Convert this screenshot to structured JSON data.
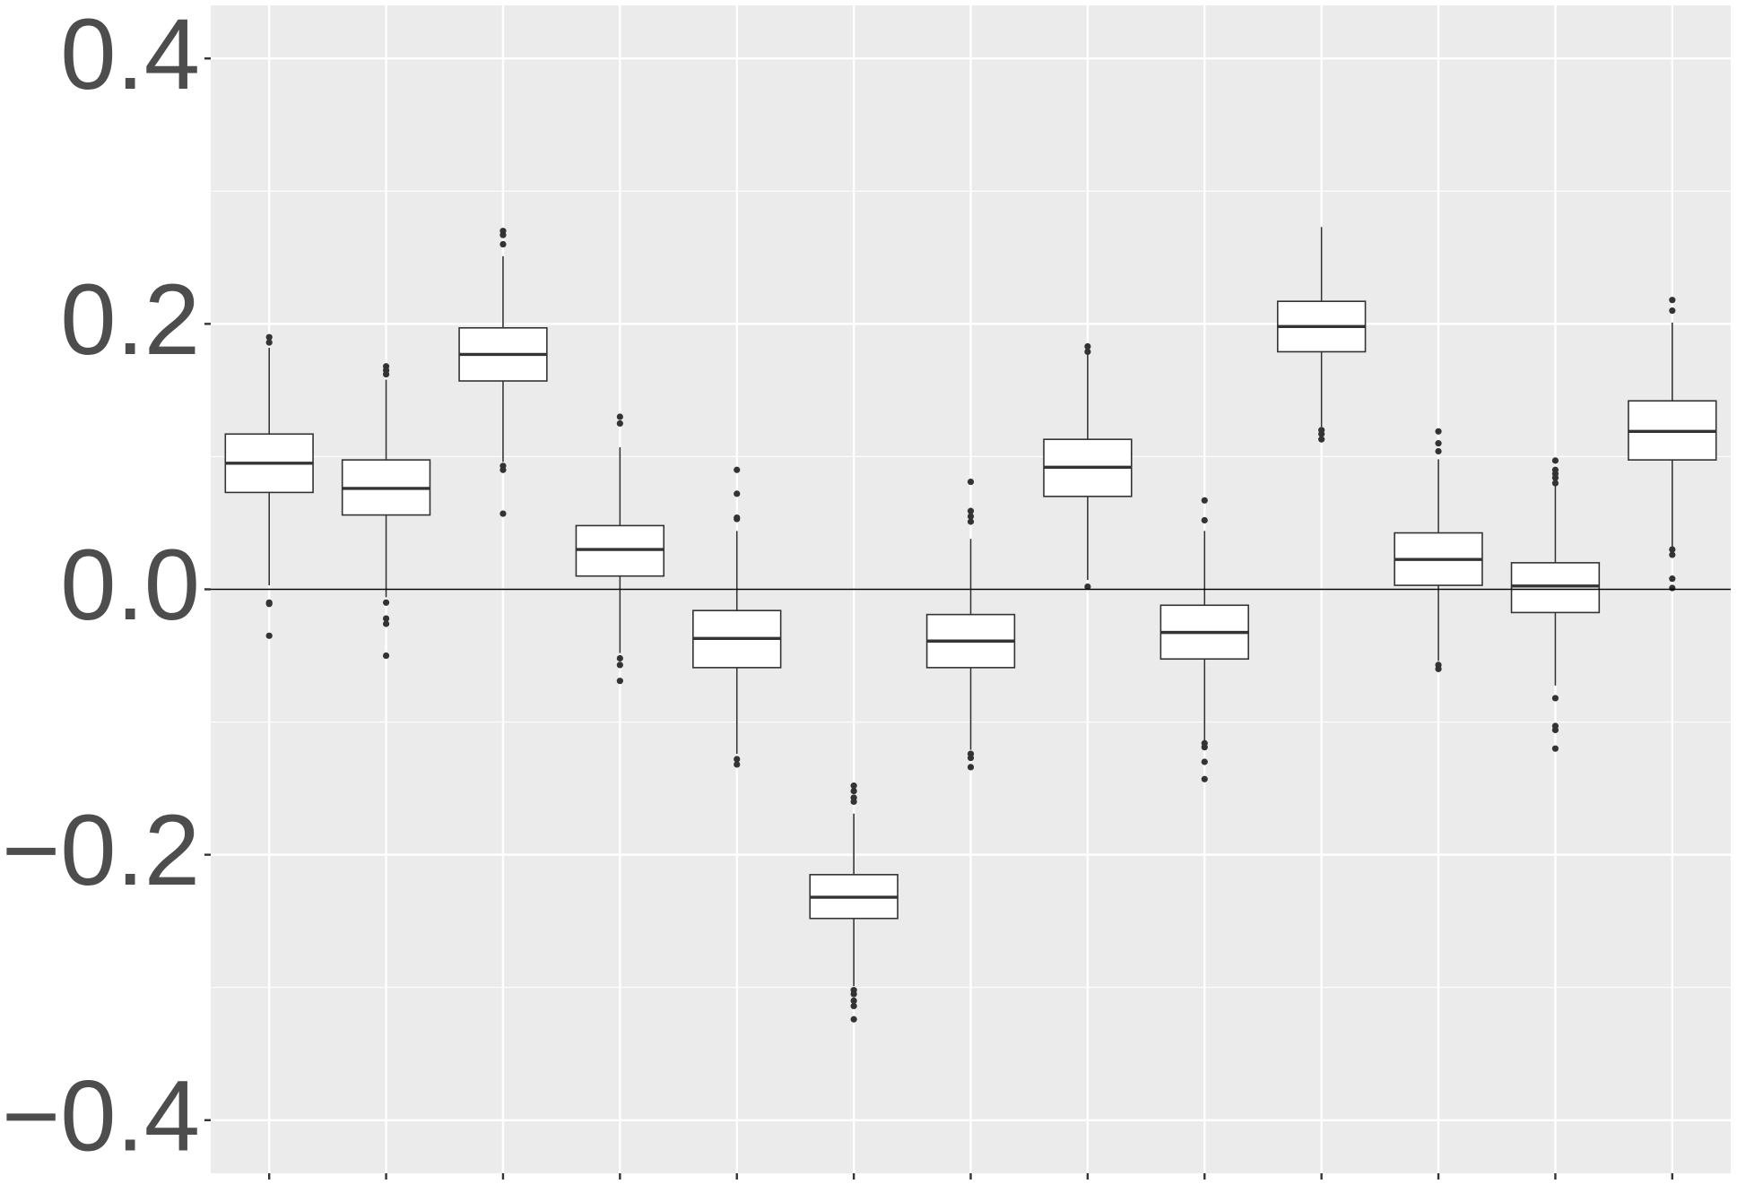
{
  "chart_data": {
    "type": "box",
    "categories": [
      null,
      null,
      null,
      null,
      null,
      null,
      null,
      null,
      null,
      null,
      null,
      null,
      null
    ],
    "boxes": [
      {
        "low": 0.003,
        "q1": 0.073,
        "median": 0.095,
        "q3": 0.117,
        "high": 0.182,
        "outliers": [
          0.19,
          0.186,
          -0.01,
          -0.011,
          -0.035
        ]
      },
      {
        "low": -0.006,
        "q1": 0.056,
        "median": 0.076,
        "q3": 0.0975,
        "high": 0.158,
        "outliers": [
          0.168,
          0.165,
          0.162,
          -0.01,
          -0.022,
          -0.026,
          -0.05
        ]
      },
      {
        "low": 0.096,
        "q1": 0.157,
        "median": 0.177,
        "q3": 0.197,
        "high": 0.251,
        "outliers": [
          0.27,
          0.267,
          0.26,
          0.093,
          0.09,
          0.057
        ]
      },
      {
        "low": -0.048,
        "q1": 0.01,
        "median": 0.03,
        "q3": 0.048,
        "high": 0.107,
        "outliers": [
          0.13,
          0.125,
          -0.052,
          -0.057,
          -0.069
        ]
      },
      {
        "low": -0.124,
        "q1": -0.059,
        "median": -0.037,
        "q3": -0.016,
        "high": 0.044,
        "outliers": [
          0.09,
          0.072,
          0.054,
          0.053,
          -0.128,
          -0.132
        ]
      },
      {
        "low": -0.299,
        "q1": -0.248,
        "median": -0.232,
        "q3": -0.215,
        "high": -0.169,
        "outliers": [
          -0.148,
          -0.152,
          -0.157,
          -0.16,
          -0.302,
          -0.305,
          -0.31,
          -0.314,
          -0.324
        ]
      },
      {
        "low": -0.121,
        "q1": -0.059,
        "median": -0.039,
        "q3": -0.019,
        "high": 0.038,
        "outliers": [
          0.081,
          0.059,
          0.055,
          0.051,
          -0.124,
          -0.127,
          -0.134
        ]
      },
      {
        "low": 0.007,
        "q1": 0.07,
        "median": 0.092,
        "q3": 0.113,
        "high": 0.178,
        "outliers": [
          0.183,
          0.179,
          0.002
        ]
      },
      {
        "low": -0.114,
        "q1": -0.0525,
        "median": -0.0325,
        "q3": -0.012,
        "high": 0.044,
        "outliers": [
          0.067,
          0.052,
          -0.116,
          -0.119,
          -0.13,
          -0.143
        ]
      },
      {
        "low": 0.1225,
        "q1": 0.179,
        "median": 0.198,
        "q3": 0.217,
        "high": 0.273,
        "outliers": [
          0.12,
          0.117,
          0.113
        ]
      },
      {
        "low": -0.054,
        "q1": 0.003,
        "median": 0.0225,
        "q3": 0.0425,
        "high": 0.098,
        "outliers": [
          0.119,
          0.11,
          0.104,
          -0.057,
          -0.06
        ]
      },
      {
        "low": -0.0725,
        "q1": -0.0175,
        "median": 0.0025,
        "q3": 0.02,
        "high": 0.078,
        "outliers": [
          0.097,
          0.09,
          0.087,
          0.084,
          0.08,
          -0.082,
          -0.103,
          -0.106,
          -0.12
        ]
      },
      {
        "low": 0.0275,
        "q1": 0.0975,
        "median": 0.119,
        "q3": 0.142,
        "high": 0.201,
        "outliers": [
          0.218,
          0.21,
          0.03,
          0.026,
          0.008,
          0.001
        ]
      }
    ],
    "ylim": [
      -0.44,
      0.44
    ],
    "yticks": [
      {
        "value": -0.4,
        "label": "−0.4"
      },
      {
        "value": -0.2,
        "label": "−0.2"
      },
      {
        "value": 0,
        "label": "0.0"
      },
      0.2,
      0.4
    ],
    "hline": 0,
    "grid": true,
    "minor_grid": true,
    "box_fill": "#ffffff",
    "line_color": "#333333",
    "panel_color": "#ebebeb"
  }
}
